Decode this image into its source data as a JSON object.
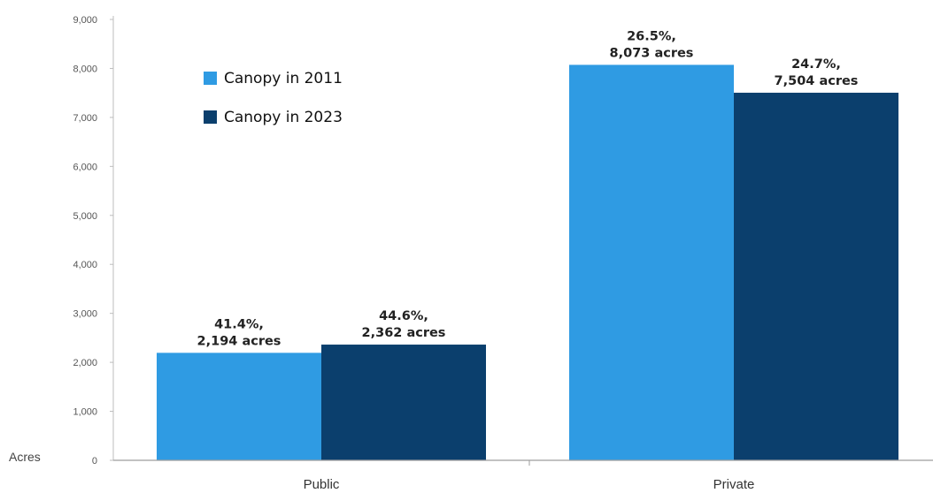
{
  "chart_data": {
    "type": "bar",
    "categories": [
      "Public",
      "Private"
    ],
    "series": [
      {
        "name": "Canopy in 2011",
        "color": "#2f9be3",
        "values": [
          2194,
          8073
        ],
        "labels": [
          [
            "41.4%,",
            "2,194 acres"
          ],
          [
            "26.5%,",
            "8,073 acres"
          ]
        ]
      },
      {
        "name": "Canopy in 2023",
        "color": "#0b3f6d",
        "values": [
          2362,
          7504
        ],
        "labels": [
          [
            "44.6%,",
            "2,362 acres"
          ],
          [
            "24.7%,",
            "7,504 acres"
          ]
        ]
      }
    ],
    "ylabel": "Acres",
    "ylim": [
      0,
      9000
    ],
    "yticks": [
      0,
      1000,
      2000,
      3000,
      4000,
      5000,
      6000,
      7000,
      8000,
      9000
    ],
    "ytick_labels": [
      "0",
      "1,000",
      "2,000",
      "3,000",
      "4,000",
      "5,000",
      "6,000",
      "7,000",
      "8,000",
      "9,000"
    ],
    "grid": false,
    "legend": "top-left"
  }
}
